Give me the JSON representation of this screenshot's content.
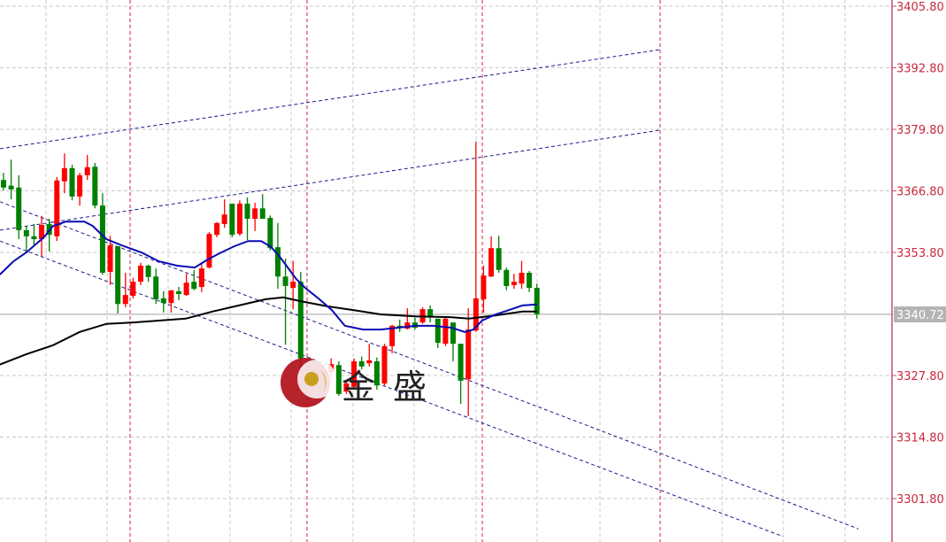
{
  "chart_data": {
    "type": "candlestick",
    "title": "",
    "xlabel": "",
    "ylabel": "",
    "ylim": [
      3296.0,
      3407.0
    ],
    "y_ticks": [
      "3405.80",
      "3392.80",
      "3379.80",
      "3366.80",
      "3353.80",
      "3327.80",
      "3314.80",
      "3301.80"
    ],
    "current_price": "3340.72",
    "grid": true,
    "colors": {
      "up": "#ff0000",
      "down": "#008000",
      "ma_fast": "#0a0ab4",
      "ma_slow": "#000000",
      "channel": "#1a1a8c",
      "separator": "#d02048",
      "grid": "#c8c8c8",
      "axis": "#c8506c",
      "tick_label": "#c8283c",
      "current_label_bg": "#b4b4b4"
    },
    "candles": [
      [
        3369.1,
        3370.6,
        3366.9,
        3367.5
      ],
      [
        3367.9,
        3373.4,
        3365.0,
        3367.1
      ],
      [
        3367.5,
        3370.1,
        3356.6,
        3358.5
      ],
      [
        3358.5,
        3359.4,
        3353.8,
        3357.2
      ],
      [
        3357.2,
        3359.8,
        3355.1,
        3356.6
      ],
      [
        3356.6,
        3361.5,
        3352.9,
        3359.6
      ],
      [
        3359.8,
        3360.9,
        3354.0,
        3357.5
      ],
      [
        3357.2,
        3369.7,
        3356.2,
        3369.0
      ],
      [
        3368.8,
        3374.7,
        3366.3,
        3371.6
      ],
      [
        3371.6,
        3372.3,
        3364.8,
        3365.6
      ],
      [
        3365.6,
        3370.6,
        3363.7,
        3370.1
      ],
      [
        3370.1,
        3374.4,
        3369.1,
        3371.8
      ],
      [
        3371.9,
        3372.7,
        3363.1,
        3363.7
      ],
      [
        3363.7,
        3366.3,
        3349.1,
        3349.5
      ],
      [
        3349.7,
        3357.3,
        3346.9,
        3355.3
      ],
      [
        3355.1,
        3355.1,
        3340.9,
        3342.9
      ],
      [
        3342.9,
        3349.5,
        3342.2,
        3344.8
      ],
      [
        3344.6,
        3348.4,
        3344.1,
        3347.6
      ],
      [
        3347.6,
        3351.6,
        3346.9,
        3351.0
      ],
      [
        3351.0,
        3351.2,
        3347.6,
        3348.6
      ],
      [
        3348.7,
        3350.4,
        3342.9,
        3343.9
      ],
      [
        3344.1,
        3345.6,
        3341.1,
        3343.1
      ],
      [
        3343.1,
        3345.8,
        3341.1,
        3345.8
      ],
      [
        3345.6,
        3346.5,
        3343.7,
        3345.0
      ],
      [
        3344.8,
        3349.3,
        3344.6,
        3347.4
      ],
      [
        3347.6,
        3350.1,
        3345.8,
        3346.1
      ],
      [
        3346.5,
        3351.4,
        3345.4,
        3350.4
      ],
      [
        3350.6,
        3358.1,
        3350.4,
        3357.7
      ],
      [
        3357.5,
        3360.2,
        3357.0,
        3360.0
      ],
      [
        3359.8,
        3365.0,
        3359.0,
        3361.8
      ],
      [
        3364.1,
        3364.1,
        3357.0,
        3357.5
      ],
      [
        3357.7,
        3364.8,
        3357.3,
        3364.1
      ],
      [
        3364.1,
        3365.4,
        3356.4,
        3360.9
      ],
      [
        3360.9,
        3364.3,
        3358.3,
        3363.1
      ],
      [
        3363.1,
        3366.1,
        3360.9,
        3360.9
      ],
      [
        3361.1,
        3361.6,
        3354.2,
        3354.7
      ],
      [
        3354.9,
        3360.0,
        3346.1,
        3348.7
      ],
      [
        3348.7,
        3352.5,
        3334.3,
        3346.7
      ],
      [
        3346.3,
        3352.0,
        3341.8,
        3347.6
      ],
      [
        3347.6,
        3349.7,
        3329.5,
        3331.4
      ],
      [
        3328.7,
        3330.4,
        3326.7,
        3329.1
      ],
      [
        3329.1,
        3330.4,
        3326.7,
        3328.0
      ],
      [
        3328.0,
        3330.0,
        3327.0,
        3328.7
      ],
      [
        3328.5,
        3331.4,
        3327.0,
        3330.2
      ],
      [
        3330.0,
        3330.8,
        3323.5,
        3323.9
      ],
      [
        3324.4,
        3326.7,
        3323.9,
        3326.1
      ],
      [
        3325.4,
        3331.4,
        3324.8,
        3330.8
      ],
      [
        3330.8,
        3331.8,
        3329.1,
        3329.7
      ],
      [
        3330.4,
        3334.5,
        3329.7,
        3331.0
      ],
      [
        3330.8,
        3331.6,
        3324.8,
        3325.7
      ],
      [
        3326.1,
        3334.5,
        3325.7,
        3334.0
      ],
      [
        3334.0,
        3338.5,
        3332.5,
        3338.3
      ],
      [
        3338.3,
        3339.6,
        3337.0,
        3338.1
      ],
      [
        3337.7,
        3342.0,
        3337.5,
        3339.0
      ],
      [
        3339.0,
        3340.0,
        3337.5,
        3337.9
      ],
      [
        3339.0,
        3342.2,
        3338.7,
        3341.8
      ],
      [
        3341.8,
        3342.6,
        3339.0,
        3340.3
      ],
      [
        3339.8,
        3339.8,
        3333.6,
        3334.7
      ],
      [
        3334.5,
        3340.1,
        3334.0,
        3339.8
      ],
      [
        3339.0,
        3339.0,
        3330.8,
        3334.5
      ],
      [
        3334.5,
        3334.5,
        3321.8,
        3326.7
      ],
      [
        3327.0,
        3342.0,
        3319.2,
        3337.5
      ],
      [
        3337.3,
        3377.2,
        3337.0,
        3344.1
      ],
      [
        3343.9,
        3351.0,
        3341.1,
        3348.9
      ],
      [
        3348.7,
        3357.2,
        3348.6,
        3354.7
      ],
      [
        3354.7,
        3357.3,
        3349.5,
        3350.1
      ],
      [
        3350.1,
        3350.6,
        3345.8,
        3346.7
      ],
      [
        3346.9,
        3349.3,
        3346.1,
        3347.6
      ],
      [
        3347.2,
        3352.0,
        3346.1,
        3349.5
      ],
      [
        3349.5,
        3349.9,
        3345.4,
        3346.3
      ],
      [
        3346.3,
        3347.2,
        3339.8,
        3340.72
      ]
    ],
    "ma_fast": [
      [
        -0.5,
        3349.1
      ],
      [
        1.3,
        3351.9
      ],
      [
        3.0,
        3353.8
      ],
      [
        5.3,
        3357.0
      ],
      [
        6.5,
        3359.4
      ],
      [
        8.2,
        3360.3
      ],
      [
        10.6,
        3360.3
      ],
      [
        11.7,
        3359.4
      ],
      [
        13.5,
        3356.6
      ],
      [
        15.8,
        3355.1
      ],
      [
        18.1,
        3353.8
      ],
      [
        20.4,
        3351.9
      ],
      [
        22.8,
        3351.0
      ],
      [
        25.1,
        3350.6
      ],
      [
        26.8,
        3352.3
      ],
      [
        28.6,
        3353.8
      ],
      [
        30.3,
        3355.1
      ],
      [
        32.1,
        3356.2
      ],
      [
        33.8,
        3356.2
      ],
      [
        35.0,
        3355.1
      ],
      [
        36.1,
        3353.2
      ],
      [
        37.3,
        3350.6
      ],
      [
        38.4,
        3348.2
      ],
      [
        39.6,
        3346.3
      ],
      [
        41.3,
        3344.1
      ],
      [
        43.1,
        3341.6
      ],
      [
        44.8,
        3338.3
      ],
      [
        47.2,
        3337.5
      ],
      [
        49.5,
        3337.5
      ],
      [
        51.8,
        3337.9
      ],
      [
        54.1,
        3338.3
      ],
      [
        56.4,
        3338.3
      ],
      [
        58.8,
        3337.9
      ],
      [
        60.5,
        3337.0
      ],
      [
        61.7,
        3337.5
      ],
      [
        62.8,
        3339.4
      ],
      [
        64.6,
        3340.7
      ],
      [
        66.3,
        3341.6
      ],
      [
        68.1,
        3342.6
      ],
      [
        70,
        3342.8
      ]
    ],
    "ma_slow": [
      [
        -0.5,
        3330.1
      ],
      [
        3.0,
        3332.3
      ],
      [
        6.5,
        3334.2
      ],
      [
        10.0,
        3337.0
      ],
      [
        13.5,
        3338.7
      ],
      [
        17.0,
        3339.0
      ],
      [
        20.4,
        3339.4
      ],
      [
        23.9,
        3339.8
      ],
      [
        27.4,
        3341.3
      ],
      [
        30.9,
        3342.6
      ],
      [
        34.4,
        3343.9
      ],
      [
        36.7,
        3344.3
      ],
      [
        39.0,
        3343.5
      ],
      [
        42.5,
        3342.4
      ],
      [
        46.0,
        3341.6
      ],
      [
        49.5,
        3340.7
      ],
      [
        54.1,
        3340.3
      ],
      [
        58.8,
        3340.1
      ],
      [
        61.1,
        3339.8
      ],
      [
        64.6,
        3340.5
      ],
      [
        68.1,
        3341.3
      ],
      [
        70,
        3341.3
      ]
    ],
    "channel_lines": [
      [
        [
          -0.46,
          3375.7
        ],
        [
          86.1,
          3396.6
        ]
      ],
      [
        [
          -0.46,
          3358.5
        ],
        [
          86.1,
          3379.6
        ]
      ],
      [
        [
          -0.46,
          3364.5
        ],
        [
          112.2,
          3295.4
        ]
      ],
      [
        [
          -0.46,
          3356.2
        ],
        [
          102.3,
          3293.8
        ]
      ]
    ]
  },
  "logo": {
    "text_1": "金",
    "text_2": "盛"
  }
}
